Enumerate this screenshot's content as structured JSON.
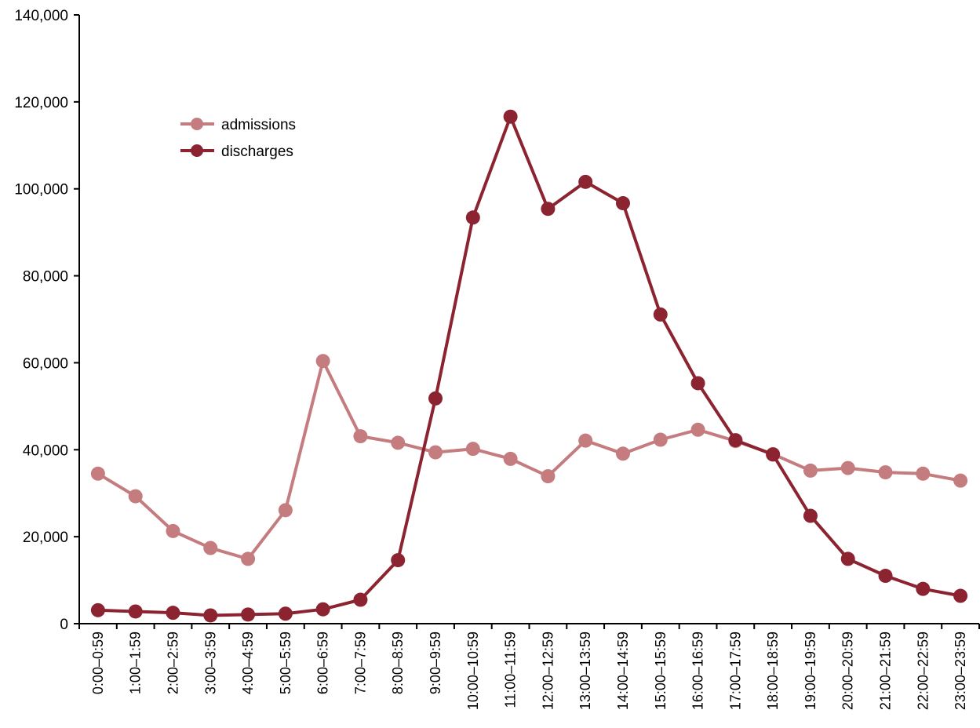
{
  "chart_data": {
    "type": "line",
    "title": "",
    "xlabel": "",
    "ylabel": "",
    "ylim": [
      0,
      140000
    ],
    "yticks": [
      0,
      20000,
      40000,
      60000,
      80000,
      100000,
      120000,
      140000
    ],
    "ytick_labels": [
      "0",
      "20,000",
      "40,000",
      "60,000",
      "80,000",
      "100,000",
      "120,000",
      "140,000"
    ],
    "grid": false,
    "legend_position": "top-left",
    "categories": [
      "0:00–0:59",
      "1:00–1:59",
      "2:00–2:59",
      "3:00–3:59",
      "4:00–4:59",
      "5:00–5:59",
      "6:00–6:59",
      "7:00–7:59",
      "8:00–8:59",
      "9:00–9:59",
      "10:00–10:59",
      "11:00–11:59",
      "12:00–12:59",
      "13:00–13:59",
      "14:00–14:59",
      "15:00–15:59",
      "16:00–16:59",
      "17:00–17:59",
      "18:00–18:59",
      "19:00–19:59",
      "20:00–20:59",
      "21:00–21:59",
      "22:00–22:59",
      "23:00–23:59"
    ],
    "series": [
      {
        "name": "admissions",
        "color": "#c47c7e",
        "values": [
          34500,
          29300,
          21300,
          17400,
          14900,
          26100,
          60400,
          43100,
          41600,
          39400,
          40200,
          37900,
          33900,
          42100,
          39100,
          42300,
          44600,
          42000,
          39000,
          35200,
          35800,
          34800,
          34500,
          32900
        ]
      },
      {
        "name": "discharges",
        "color": "#8b2330",
        "values": [
          3100,
          2800,
          2500,
          1900,
          2100,
          2300,
          3300,
          5500,
          14600,
          51800,
          93400,
          116600,
          95400,
          101600,
          96700,
          71100,
          55300,
          42200,
          38900,
          24800,
          14900,
          11000,
          8000,
          6400
        ]
      }
    ]
  }
}
